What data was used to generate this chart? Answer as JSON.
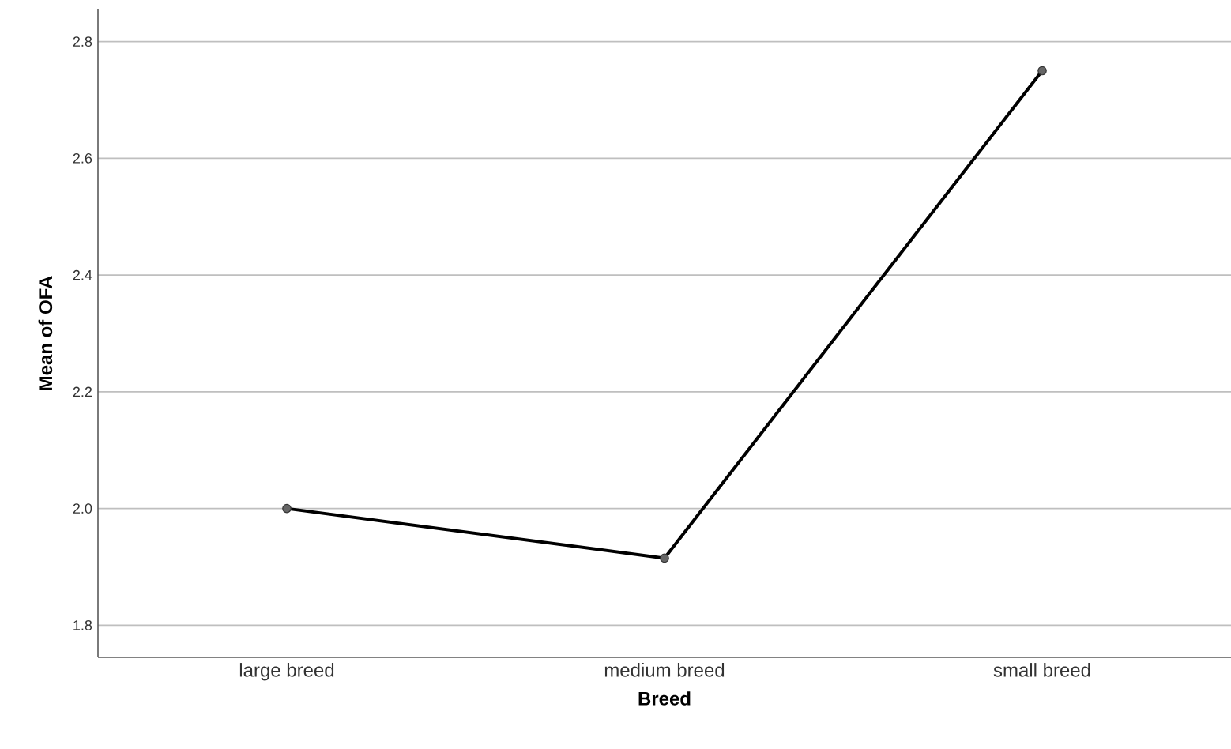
{
  "chart_data": {
    "type": "line",
    "xlabel": "Breed",
    "ylabel": "Mean of OFA",
    "categories": [
      "large breed",
      "medium breed",
      "small breed"
    ],
    "series": [
      {
        "color": "#000000",
        "values": [
          2.0,
          1.915,
          2.75
        ]
      }
    ],
    "ylim": [
      1.745,
      2.855
    ],
    "yticks": [
      1.8,
      {
        "value": 2.0,
        "label": "2.0"
      },
      2.2,
      2.4,
      2.6,
      2.8
    ],
    "grid": "y",
    "marker": "circle",
    "line_style": "solid"
  }
}
